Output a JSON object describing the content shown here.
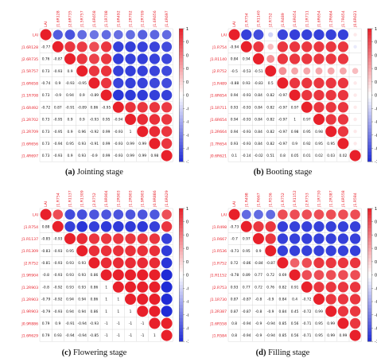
{
  "colors": {
    "positive": "#e8202a",
    "negative": "#1f2bd6",
    "neutral": "#ffffff",
    "grid": "#d0d0d0",
    "label": "#e8202a"
  },
  "chart_data": [
    {
      "type": "heatmap",
      "variables": [
        "LAI",
        "J1.6R128",
        "J2.6R735",
        "J1.5R757",
        "J1.6R658",
        "J1.1R708",
        "J1.6R492",
        "J1.2R702",
        "J1.2R709",
        "J1.6R656",
        "J1.4R697"
      ],
      "values": [
        [
          1,
          -0.77,
          -0.81,
          -0.7,
          -0.65,
          -0.7,
          -0.68,
          -0.69,
          -0.75,
          -0.72,
          -0.7
        ],
        [
          -0.77,
          1,
          0.9,
          0.88,
          0.8,
          0.9,
          -0.9,
          -0.91,
          -0.89,
          -0.88,
          -0.85
        ],
        [
          0.76,
          -0.87,
          1,
          0.9,
          0.85,
          0.9,
          -0.92,
          -0.9,
          -0.91,
          -0.89,
          -0.87
        ],
        [
          0.73,
          -0.93,
          0.9,
          1,
          0.9,
          0.92,
          -0.9,
          -0.91,
          -0.9,
          -0.88,
          -0.86
        ],
        [
          -0.74,
          0.9,
          -0.93,
          -0.95,
          1,
          0.9,
          -0.88,
          -0.9,
          -0.89,
          -0.87,
          -0.85
        ],
        [
          0.73,
          -0.9,
          0.94,
          0.9,
          -0.89,
          1,
          -0.95,
          -0.93,
          -0.92,
          -0.9,
          -0.9
        ],
        [
          -0.72,
          0.87,
          -0.91,
          -0.89,
          0.86,
          -0.95,
          1,
          0.92,
          0.9,
          0.9,
          0.88
        ],
        [
          0.73,
          -0.95,
          0.9,
          0.9,
          -0.93,
          0.95,
          -0.94,
          1,
          0.95,
          0.93,
          0.9
        ],
        [
          0.73,
          -0.95,
          0.9,
          0.96,
          -0.92,
          0.99,
          -0.93,
          1,
          1,
          0.95,
          0.9
        ],
        [
          0.73,
          -0.94,
          0.95,
          0.93,
          -0.91,
          0.99,
          -0.93,
          0.99,
          0.99,
          1,
          0.9
        ],
        [
          0.73,
          -0.93,
          0.9,
          0.93,
          -0.9,
          0.99,
          -0.93,
          0.99,
          0.99,
          0.98,
          1
        ]
      ],
      "colorbar": {
        "ticks": [
          "1",
          "0.8",
          "0.6",
          "0.4",
          "0.2",
          "0",
          "-0.2",
          "-0.4",
          "-0.6",
          "-0.8",
          "-1"
        ]
      },
      "caption": {
        "label": "(a)",
        "text": "Jointing stage"
      }
    },
    {
      "type": "heatmap",
      "variables": [
        "LAI",
        "J1.R754",
        "J1.R1140",
        "J2.R752",
        "J1.R489",
        "J1.6R654",
        "J1.1R711",
        "J1.6R654",
        "J1.2R664",
        "J1.7R654",
        "J0.6R621"
      ],
      "values": [
        [
          1,
          -0.9,
          -0.84,
          -0.2,
          -0.88,
          -0.9,
          -0.9,
          -0.9,
          -0.9,
          -0.9,
          0.1
        ],
        [
          -0.94,
          1,
          0.9,
          0.3,
          0.9,
          0.9,
          0.9,
          0.9,
          0.9,
          0.9,
          -0.1
        ],
        [
          0.84,
          0.94,
          1,
          0.5,
          0.9,
          0.9,
          0.9,
          0.9,
          0.9,
          0.9,
          0
        ],
        [
          -0.5,
          -0.53,
          -0.51,
          1,
          0.5,
          0.4,
          0.4,
          0.4,
          0.4,
          0.4,
          0.3
        ],
        [
          -0.88,
          0.93,
          -0.83,
          0.5,
          1,
          0.9,
          0.9,
          0.9,
          0.9,
          0.9,
          0.1
        ],
        [
          0.94,
          -0.93,
          0.84,
          0.82,
          -0.97,
          1,
          0.9,
          0.9,
          0.9,
          0.9,
          0.1
        ],
        [
          0.93,
          -0.93,
          0.84,
          0.82,
          -0.97,
          0.97,
          1,
          0.9,
          0.9,
          0.9,
          0.1
        ],
        [
          0.94,
          -0.93,
          0.84,
          0.82,
          -0.97,
          1,
          0.97,
          1,
          0.9,
          0.9,
          0.1
        ],
        [
          0.94,
          -0.93,
          0.84,
          0.82,
          -0.97,
          0.98,
          0.95,
          0.98,
          1,
          0.9,
          0.1
        ],
        [
          0.93,
          -0.93,
          0.84,
          0.82,
          -0.97,
          0.9,
          0.92,
          0.95,
          0.95,
          1,
          0.1
        ],
        [
          0.1,
          -0.14,
          -0.02,
          0.51,
          0.8,
          0.05,
          0.01,
          0.02,
          0.03,
          0.02,
          1
        ]
      ],
      "colorbar": {
        "ticks": [
          "1",
          "0.8",
          "0.6",
          "0.4",
          "0.2",
          "0",
          "-0.2",
          "-0.4",
          "-0.6",
          "-0.8",
          "-1"
        ]
      },
      "caption": {
        "label": "(b)",
        "text": "Booting stage"
      }
    },
    {
      "type": "heatmap",
      "variables": [
        "LAI",
        "J1.R754",
        "J1.R1137",
        "J1.R1309",
        "J2.R752",
        "J1.9R904",
        "J1.2R903",
        "J1.2R903",
        "J1.9R903",
        "J0.9R886",
        "J1.6R629"
      ],
      "values": [
        [
          1,
          0.8,
          -0.85,
          -0.83,
          -0.8,
          -0.8,
          -0.8,
          -0.8,
          -0.8,
          -0.79,
          0.79
        ],
        [
          0.88,
          1,
          -0.9,
          -0.95,
          -0.9,
          -0.93,
          -0.93,
          -0.93,
          -0.93,
          -0.9,
          0.9
        ],
        [
          -0.85,
          -0.93,
          1,
          0.95,
          0.9,
          0.9,
          0.9,
          0.9,
          0.9,
          0.9,
          -0.9
        ],
        [
          -0.83,
          -0.93,
          0.95,
          1,
          0.93,
          0.93,
          0.93,
          0.93,
          0.93,
          0.93,
          -0.93
        ],
        [
          -0.81,
          -0.93,
          0.93,
          0.93,
          1,
          0.95,
          0.95,
          0.95,
          0.95,
          0.95,
          -0.95
        ],
        [
          -0.8,
          -0.93,
          0.93,
          0.93,
          0.86,
          1,
          1,
          1,
          1,
          1,
          -1
        ],
        [
          -0.8,
          -0.92,
          0.93,
          0.93,
          0.86,
          1,
          1,
          1,
          1,
          1,
          -1
        ],
        [
          -0.79,
          -0.92,
          0.94,
          0.94,
          0.86,
          1,
          1,
          1,
          1,
          1,
          -1
        ],
        [
          -0.79,
          -0.93,
          0.94,
          0.94,
          0.86,
          1,
          1,
          1,
          1,
          1,
          -1
        ],
        [
          0.79,
          0.9,
          -0.91,
          -0.94,
          -0.93,
          -1,
          -1,
          -1,
          -1,
          1,
          1
        ],
        [
          0.79,
          0.93,
          -0.94,
          -0.94,
          -0.85,
          -1,
          -1,
          -1,
          -1,
          1,
          1
        ]
      ],
      "colorbar": {
        "ticks": [
          "1",
          "0.8",
          "0.6",
          "0.4",
          "0.2",
          "0",
          "-0.2",
          "-0.4",
          "-0.6",
          "-0.8",
          "-1"
        ]
      },
      "caption": {
        "label": "(c)",
        "text": "Flowering stage"
      }
    },
    {
      "type": "heatmap",
      "variables": [
        "LAI",
        "J1.R498",
        "J1.R667",
        "J1.R536",
        "J1.R752",
        "J1.R1152",
        "J2.R753",
        "J1.1R730",
        "J1.2R387",
        "J1.6R558",
        "J1.R584"
      ],
      "values": [
        [
          1,
          -0.7,
          -0.7,
          -0.7,
          0.8,
          0.8,
          0.8,
          0.8,
          0.8,
          0.8,
          0.8
        ],
        [
          -0.73,
          1,
          0.9,
          0.9,
          -0.9,
          -0.9,
          -0.9,
          -0.9,
          -0.9,
          -0.9,
          -0.9
        ],
        [
          -0.7,
          0.97,
          1,
          0.9,
          -0.9,
          -0.9,
          -0.9,
          -0.9,
          -0.9,
          -0.9,
          -0.9
        ],
        [
          -0.73,
          0.95,
          0.9,
          1,
          -0.9,
          -0.9,
          -0.9,
          -0.9,
          -0.9,
          -0.9,
          -0.9
        ],
        [
          0.72,
          -0.86,
          -0.84,
          -0.87,
          1,
          0.7,
          0.8,
          0.9,
          0.9,
          0.9,
          0.9
        ],
        [
          -0.78,
          0.89,
          0.77,
          0.72,
          0.69,
          1,
          0.8,
          0.8,
          0.8,
          0.8,
          0.8
        ],
        [
          0.93,
          0.77,
          0.72,
          0.76,
          0.82,
          0.91,
          1,
          0.9,
          0.9,
          0.9,
          0.9
        ],
        [
          0.87,
          -0.87,
          -0.8,
          -0.9,
          0.84,
          0.4,
          -0.72,
          1,
          0.9,
          0.9,
          0.9
        ],
        [
          0.87,
          -0.87,
          -0.8,
          -0.9,
          0.84,
          0.45,
          -0.72,
          0.99,
          1,
          0.9,
          0.9
        ],
        [
          0.8,
          -0.94,
          -0.9,
          -0.94,
          0.85,
          0.56,
          -0.71,
          0.95,
          0.99,
          1,
          0.9
        ],
        [
          0.8,
          -0.94,
          -0.9,
          -0.94,
          0.85,
          0.56,
          -0.71,
          0.95,
          0.99,
          0.99,
          1
        ]
      ],
      "colorbar": {
        "ticks": [
          "1",
          "0.8",
          "0.6",
          "0.4",
          "0.2",
          "0",
          "-0.2",
          "-0.4",
          "-0.6",
          "-0.8",
          "-1"
        ]
      },
      "caption": {
        "label": "(d)",
        "text": "Filling stage"
      }
    }
  ]
}
